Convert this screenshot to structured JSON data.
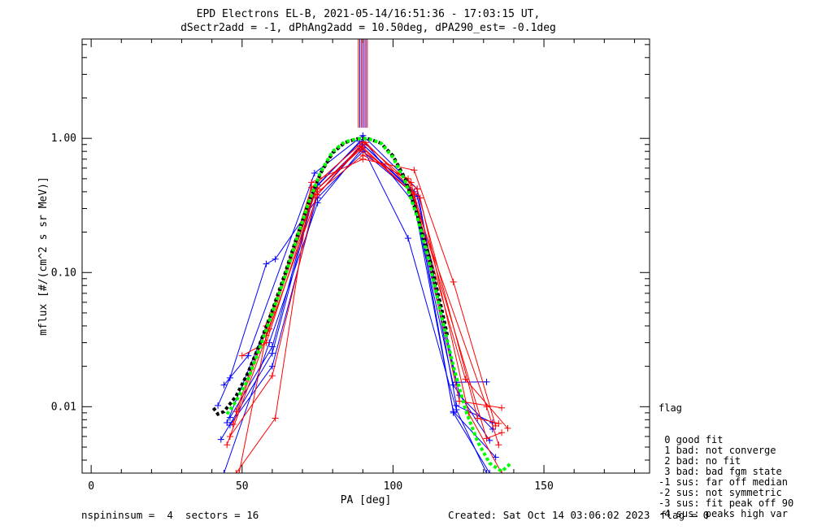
{
  "chart_data": {
    "type": "line",
    "title": "EPD Electrons EL-B, 2021-05-14/16:51:36 - 17:03:15 UT,",
    "subtitle": "dSectr2add = -1, dPhAng2add = 10.50deg, dPA290_est=  -0.1deg",
    "xlabel": "PA [deg]",
    "ylabel": "mflux [#/(cm^2 s sr MeV)]",
    "xlim": [
      -3,
      185
    ],
    "ylim": [
      0.0032,
      5.5
    ],
    "yscale": "log",
    "xticks": [
      0,
      50,
      100,
      150
    ],
    "yticks": [
      {
        "value": 1.0,
        "label": "1.00"
      },
      {
        "value": 0.1,
        "label": "0.10"
      },
      {
        "value": 0.01,
        "label": "0.01"
      }
    ],
    "vertical_lines": {
      "x": [
        88.5,
        89.0,
        89.5,
        90.0,
        90.5,
        91.0,
        91.5
      ],
      "colors": [
        "#ff0000",
        "#0000ff",
        "#ff0000",
        "#0000ff",
        "#ff0000",
        "#0000ff",
        "#ff0000"
      ],
      "y_from": 1.2
    },
    "series": [
      {
        "color": "#0000ff",
        "points": [
          [
            43,
            0.0057
          ],
          [
            60,
            0.025
          ],
          [
            74,
            0.4
          ],
          [
            90,
            0.9
          ],
          [
            107,
            0.4
          ],
          [
            120,
            0.009
          ],
          [
            132,
            0.0032
          ]
        ]
      },
      {
        "color": "#0000ff",
        "points": [
          [
            44,
            0.0032
          ],
          [
            59,
            0.03
          ],
          [
            75,
            0.33
          ],
          [
            90,
            0.85
          ],
          [
            105,
            0.18
          ],
          [
            121,
            0.0095
          ],
          [
            131,
            0.0032
          ]
        ]
      },
      {
        "color": "#0000ff",
        "points": [
          [
            42,
            0.0102
          ],
          [
            46,
            0.0164
          ],
          [
            58,
            0.116
          ],
          [
            61,
            0.126
          ],
          [
            75,
            0.36
          ],
          [
            90,
            0.8
          ],
          [
            106,
            0.4
          ],
          [
            121,
            0.0152
          ],
          [
            131,
            0.0153
          ]
        ]
      },
      {
        "color": "#0000ff",
        "points": [
          [
            44,
            0.0145
          ],
          [
            52,
            0.024
          ],
          [
            74,
            0.55
          ],
          [
            90,
            1.05
          ],
          [
            108,
            0.42
          ],
          [
            121,
            0.0102
          ],
          [
            133,
            0.0076
          ]
        ]
      },
      {
        "color": "#0000ff",
        "points": [
          [
            46,
            0.0073
          ],
          [
            60,
            0.02
          ],
          [
            75,
            0.38
          ],
          [
            90,
            0.9
          ],
          [
            108,
            0.37
          ],
          [
            122,
            0.0122
          ],
          [
            133,
            0.0068
          ]
        ]
      },
      {
        "color": "#0000ff",
        "points": [
          [
            46,
            0.0083
          ],
          [
            60,
            0.028
          ],
          [
            74,
            0.42
          ],
          [
            89,
            0.95
          ],
          [
            106,
            0.41
          ],
          [
            120,
            0.0145
          ],
          [
            132,
            0.0056
          ]
        ]
      },
      {
        "color": "#0000ff",
        "points": [
          [
            45,
            0.0076
          ],
          [
            58,
            0.04
          ],
          [
            75,
            0.45
          ],
          [
            90,
            0.98
          ],
          [
            107,
            0.33
          ],
          [
            120,
            0.0092
          ],
          [
            134,
            0.0042
          ]
        ]
      },
      {
        "color": "#ff0000",
        "points": [
          [
            48,
            0.0032
          ],
          [
            61,
            0.0082
          ],
          [
            73,
            0.47
          ],
          [
            90,
            0.7
          ],
          [
            107,
            0.58
          ],
          [
            120,
            0.085
          ],
          [
            134,
            0.0072
          ]
        ]
      },
      {
        "color": "#ff0000",
        "points": [
          [
            46,
            0.006
          ],
          [
            60,
            0.017
          ],
          [
            75,
            0.42
          ],
          [
            89,
            0.82
          ],
          [
            106,
            0.47
          ],
          [
            122,
            0.011
          ],
          [
            136,
            0.0098
          ]
        ]
      },
      {
        "color": "#ff0000",
        "points": [
          [
            50,
            0.024
          ],
          [
            58,
            0.03
          ],
          [
            74,
            0.38
          ],
          [
            90,
            0.75
          ],
          [
            105,
            0.5
          ],
          [
            124,
            0.016
          ],
          [
            138,
            0.0069
          ]
        ]
      },
      {
        "color": "#ff0000",
        "points": [
          [
            49,
            0.0032
          ],
          [
            58,
            0.034
          ],
          [
            74,
            0.4
          ],
          [
            90,
            0.86
          ],
          [
            106,
            0.4
          ],
          [
            131,
            0.01
          ],
          [
            135,
            0.0052
          ]
        ]
      },
      {
        "color": "#ff0000",
        "points": [
          [
            47,
            0.0074
          ],
          [
            60,
            0.05
          ],
          [
            73,
            0.43
          ],
          [
            90,
            0.94
          ],
          [
            108,
            0.42
          ],
          [
            128,
            0.0082
          ],
          [
            135,
            0.0075
          ]
        ]
      },
      {
        "color": "#ff0000",
        "points": [
          [
            45,
            0.0052
          ],
          [
            59,
            0.038
          ],
          [
            75,
            0.38
          ],
          [
            89,
            0.88
          ],
          [
            107,
            0.38
          ],
          [
            131,
            0.0058
          ],
          [
            136,
            0.0064
          ]
        ]
      },
      {
        "color": "#ff0000",
        "points": [
          [
            48,
            0.0092
          ],
          [
            58,
            0.04
          ],
          [
            74,
            0.4
          ],
          [
            91,
            0.93
          ],
          [
            109,
            0.36
          ],
          [
            125,
            0.009
          ],
          [
            136,
            0.0032
          ]
        ]
      }
    ],
    "fits": [
      {
        "color": "#000000",
        "points": [
          [
            40.5,
            0.0098
          ],
          [
            42,
            0.0088
          ],
          [
            44,
            0.0092
          ],
          [
            48,
            0.012
          ],
          [
            52,
            0.018
          ],
          [
            56,
            0.03
          ],
          [
            60,
            0.052
          ],
          [
            64,
            0.095
          ],
          [
            68,
            0.18
          ],
          [
            72,
            0.33
          ],
          [
            76,
            0.55
          ],
          [
            80,
            0.78
          ],
          [
            84,
            0.93
          ],
          [
            88,
            0.99
          ],
          [
            90,
            1.0
          ],
          [
            92,
            0.99
          ],
          [
            96,
            0.92
          ],
          [
            100,
            0.74
          ],
          [
            104,
            0.5
          ],
          [
            108,
            0.27
          ],
          [
            112,
            0.13
          ],
          [
            116,
            0.055
          ],
          [
            118,
            0.034
          ]
        ]
      },
      {
        "color": "#00ff00",
        "points": [
          [
            45,
            0.0088
          ],
          [
            48,
            0.011
          ],
          [
            52,
            0.016
          ],
          [
            56,
            0.028
          ],
          [
            60,
            0.05
          ],
          [
            64,
            0.09
          ],
          [
            68,
            0.175
          ],
          [
            72,
            0.33
          ],
          [
            76,
            0.56
          ],
          [
            80,
            0.8
          ],
          [
            84,
            0.94
          ],
          [
            88,
            0.99
          ],
          [
            90,
            1.0
          ],
          [
            92,
            0.99
          ],
          [
            96,
            0.92
          ],
          [
            100,
            0.72
          ],
          [
            104,
            0.48
          ],
          [
            108,
            0.26
          ],
          [
            112,
            0.12
          ],
          [
            116,
            0.048
          ],
          [
            120,
            0.02
          ],
          [
            124,
            0.0095
          ],
          [
            128,
            0.0055
          ],
          [
            132,
            0.0038
          ],
          [
            136,
            0.0033
          ],
          [
            138,
            0.0036
          ],
          [
            139,
            0.0038
          ]
        ]
      }
    ]
  },
  "legend": {
    "title": "flag",
    "items": [
      " 0 good fit",
      " 1 bad: not converge",
      " 2 bad: no fit",
      " 3 bad: bad fgm state",
      "-1 sus: far off median",
      "-2 sus: not symmetric",
      "-3 sus: fit peak off 90",
      "-4 sus: peaks high var"
    ]
  },
  "footer": {
    "left": "nspininsum =  4  sectors = 16",
    "created": "Created: Sat Oct 14 03:06:02 2023",
    "flag": "flag = 0"
  }
}
